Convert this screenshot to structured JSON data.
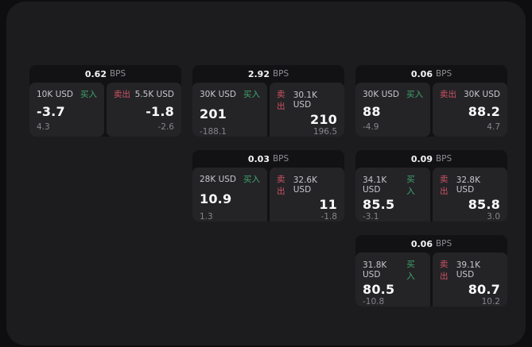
{
  "theme": {
    "background": "#0e0e10",
    "panel": "#1c1c1e",
    "card": "#121214",
    "tile": "#242427",
    "text_primary": "#f5f5f7",
    "text_secondary": "#8e8e93",
    "buy_green": "#3fa56c",
    "sell_red": "#cf5263"
  },
  "bps_unit": "BPS",
  "cards": [
    {
      "bps": "0.62",
      "buy": {
        "amount": "10K USD",
        "label": "买入",
        "price": "-3.7",
        "change": "4.3"
      },
      "sell": {
        "label": "卖出",
        "amount": "5.5K USD",
        "price": "-1.8",
        "change": "-2.6"
      }
    },
    {
      "bps": "2.92",
      "buy": {
        "amount": "30K USD",
        "label": "买入",
        "price": "201",
        "change": "-188.1"
      },
      "sell": {
        "label": "卖出",
        "amount": "30.1K USD",
        "price": "210",
        "change": "196.5"
      }
    },
    {
      "bps": "0.06",
      "buy": {
        "amount": "30K USD",
        "label": "买入",
        "price": "88",
        "change": "-4.9"
      },
      "sell": {
        "label": "卖出",
        "amount": "30K USD",
        "price": "88.2",
        "change": "4.7"
      }
    },
    {
      "bps": "0.03",
      "buy": {
        "amount": "28K USD",
        "label": "买入",
        "price": "10.9",
        "change": "1.3"
      },
      "sell": {
        "label": "卖出",
        "amount": "32.6K USD",
        "price": "11",
        "change": "-1.8"
      }
    },
    {
      "bps": "0.09",
      "buy": {
        "amount": "34.1K USD",
        "label": "买入",
        "price": "85.5",
        "change": "-3.1"
      },
      "sell": {
        "label": "卖出",
        "amount": "32.8K USD",
        "price": "85.8",
        "change": "3.0"
      }
    },
    {
      "bps": "0.06",
      "buy": {
        "amount": "31.8K USD",
        "label": "买入",
        "price": "80.5",
        "change": "-10.8"
      },
      "sell": {
        "label": "卖出",
        "amount": "39.1K USD",
        "price": "80.7",
        "change": "10.2"
      }
    }
  ]
}
